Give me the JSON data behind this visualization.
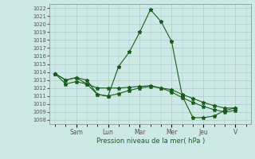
{
  "title": "Pression niveau de la mer( hPa )",
  "ylabel_ticks": [
    1008,
    1009,
    1010,
    1011,
    1012,
    1013,
    1014,
    1015,
    1016,
    1017,
    1018,
    1019,
    1020,
    1021,
    1022
  ],
  "ylim": [
    1007.5,
    1022.5
  ],
  "day_labels": [
    "Sam",
    "Lun",
    "Mar",
    "Mer",
    "Jeu",
    "V"
  ],
  "bg_color": "#cce9e5",
  "line_color": "#1a5c1a",
  "grid_color": "#a8ccc8",
  "series1_y": [
    1013.8,
    1013.0,
    1013.3,
    1013.0,
    1011.2,
    1011.0,
    1014.7,
    1016.5,
    1019.0,
    1021.8,
    1020.3,
    1017.8,
    1011.0,
    1008.3,
    1008.3,
    1008.5,
    1009.2,
    1009.5
  ],
  "series2_y": [
    1013.8,
    1013.0,
    1013.3,
    1012.5,
    1011.2,
    1011.0,
    1011.3,
    1011.7,
    1012.0,
    1012.2,
    1012.0,
    1011.5,
    1010.8,
    1010.2,
    1009.7,
    1009.3,
    1009.0,
    1009.2
  ],
  "series3_y": [
    1013.8,
    1012.5,
    1012.8,
    1012.5,
    1012.0,
    1012.0,
    1012.0,
    1012.1,
    1012.2,
    1012.3,
    1012.0,
    1011.8,
    1011.2,
    1010.7,
    1010.2,
    1009.8,
    1009.5,
    1009.5
  ],
  "n_points": 18,
  "day_tick_x": [
    2,
    5,
    8,
    11,
    14,
    17
  ],
  "xlim": [
    -0.5,
    18.5
  ]
}
